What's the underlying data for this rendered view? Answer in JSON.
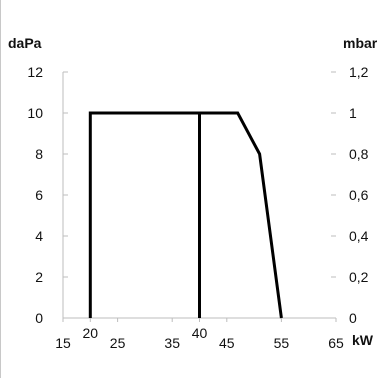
{
  "chart_data": {
    "type": "line",
    "title": "",
    "y_left_unit": "daPa",
    "y_right_unit": "mbar",
    "x_unit": "kW",
    "xlim": [
      15,
      65
    ],
    "ylim": [
      0,
      12
    ],
    "y_left_ticks": [
      {
        "value": 0,
        "label": "0"
      },
      {
        "value": 2,
        "label": "2"
      },
      {
        "value": 4,
        "label": "4"
      },
      {
        "value": 6,
        "label": "6"
      },
      {
        "value": 8,
        "label": "8"
      },
      {
        "value": 10,
        "label": "10"
      },
      {
        "value": 12,
        "label": "12"
      }
    ],
    "y_right_ticks": [
      {
        "value": 0,
        "label": "0"
      },
      {
        "value": 2,
        "label": "0,2"
      },
      {
        "value": 4,
        "label": "0,4"
      },
      {
        "value": 6,
        "label": "0,6"
      },
      {
        "value": 8,
        "label": "0,8"
      },
      {
        "value": 10,
        "label": "1"
      },
      {
        "value": 12,
        "label": "1,2"
      }
    ],
    "x_ticks": [
      {
        "value": 15,
        "label": "15",
        "raised": false
      },
      {
        "value": 20,
        "label": "20",
        "raised": true
      },
      {
        "value": 25,
        "label": "25",
        "raised": false
      },
      {
        "value": 35,
        "label": "35",
        "raised": false
      },
      {
        "value": 40,
        "label": "40",
        "raised": true
      },
      {
        "value": 45,
        "label": "45",
        "raised": false
      },
      {
        "value": 55,
        "label": "55",
        "raised": false
      },
      {
        "value": 65,
        "label": "65",
        "raised": false
      }
    ],
    "series": [
      {
        "x": [
          20,
          20,
          47,
          51,
          55
        ],
        "y": [
          0,
          10,
          10,
          8,
          0
        ]
      },
      {
        "x": [
          40,
          40
        ],
        "y": [
          0,
          10
        ]
      }
    ],
    "grid": false,
    "legend": "none",
    "line_color": "#000000",
    "axis_color": "#bdbdbd"
  }
}
